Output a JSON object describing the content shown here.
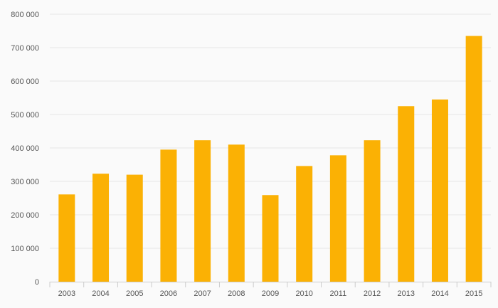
{
  "colors": {
    "background": "#fafafa",
    "bar": "#fbb104",
    "grid": "#e6e6e6",
    "axis": "#cccccc",
    "text": "#555555"
  },
  "chart_data": {
    "type": "bar",
    "title": "",
    "xlabel": "",
    "ylabel": "",
    "categories": [
      "2003",
      "2004",
      "2005",
      "2006",
      "2007",
      "2008",
      "2009",
      "2010",
      "2011",
      "2012",
      "2013",
      "2014",
      "2015"
    ],
    "values": [
      261000,
      323000,
      320000,
      395000,
      423000,
      410000,
      259000,
      346000,
      378000,
      423000,
      525000,
      545000,
      735000
    ],
    "ylim": [
      0,
      800000
    ],
    "yticks": [
      0,
      100000,
      200000,
      300000,
      400000,
      500000,
      600000,
      700000,
      800000
    ],
    "ytick_labels": [
      "0",
      "100 000",
      "200 000",
      "300 000",
      "400 000",
      "500 000",
      "600 000",
      "700 000",
      "800 000"
    ],
    "grid": true,
    "legend": "none"
  }
}
